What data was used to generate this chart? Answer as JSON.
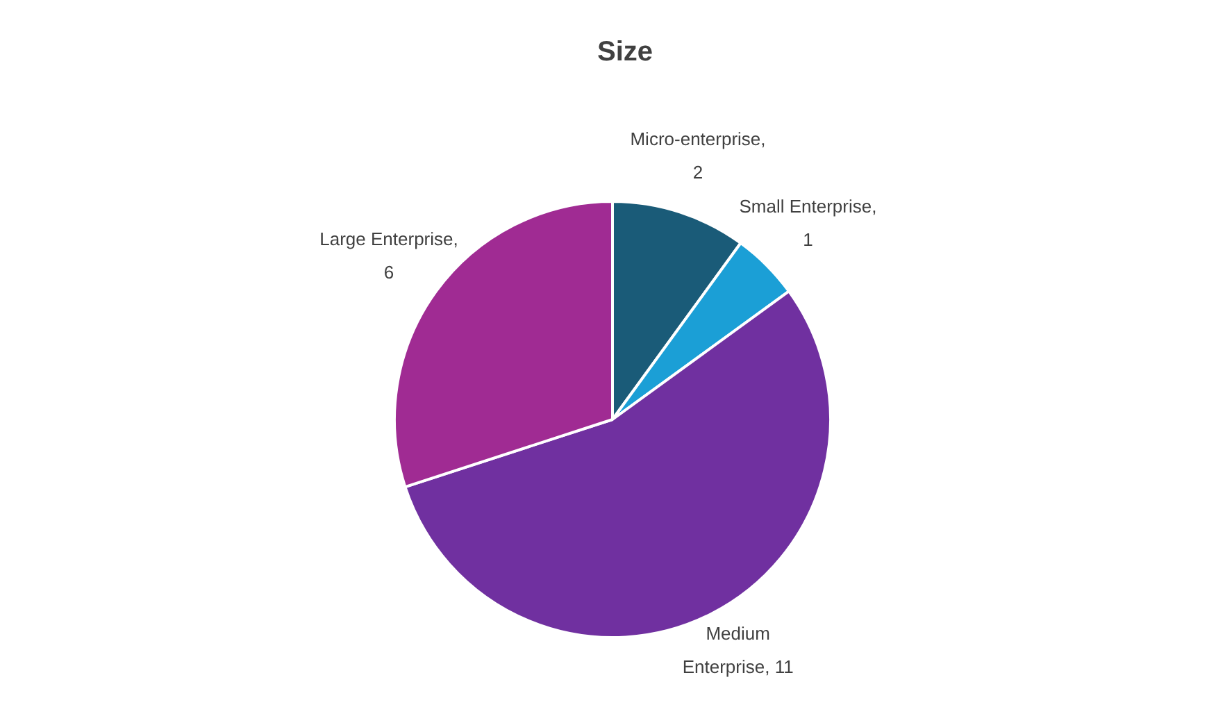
{
  "chart_data": {
    "type": "pie",
    "title": "Size",
    "categories": [
      "Micro-enterprise",
      "Small Enterprise",
      "Medium Enterprise",
      "Large Enterprise"
    ],
    "values": [
      2,
      1,
      11,
      6
    ],
    "colors": [
      "#1a5b78",
      "#1b9fd6",
      "#7030a0",
      "#a02b93"
    ],
    "value_labels": [
      ", 2",
      ", 1",
      ", 11",
      ", 6"
    ],
    "legend": false
  }
}
